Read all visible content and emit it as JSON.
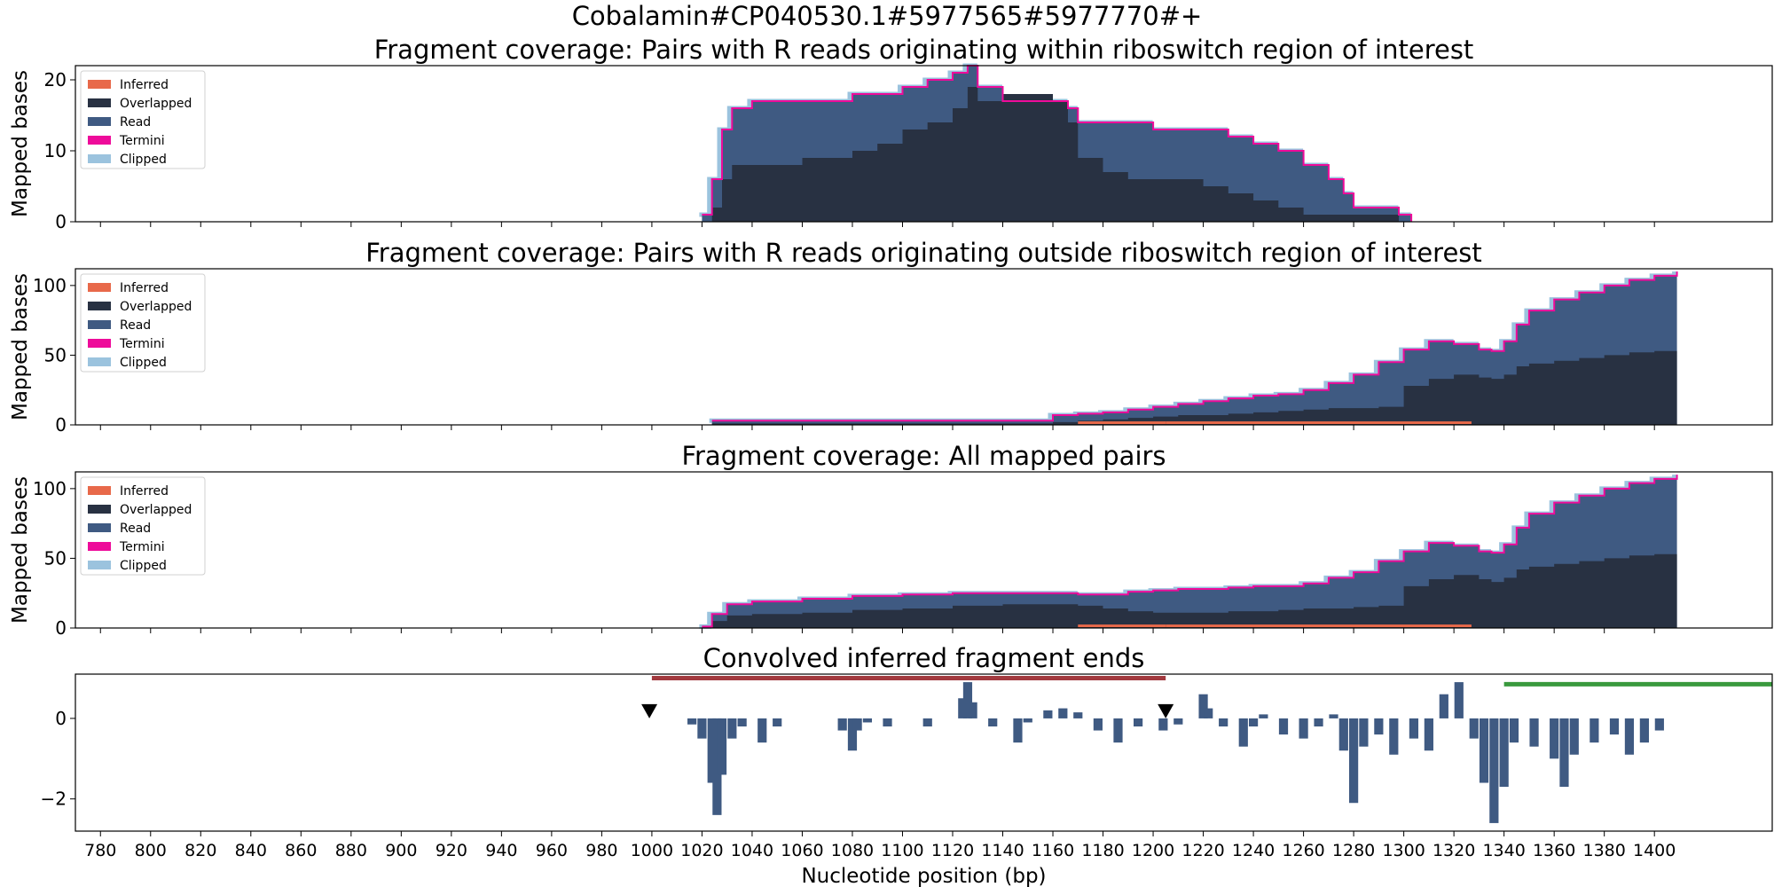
{
  "figure": {
    "suptitle": "Cobalamin#CP040530.1#5977565#5977770#+",
    "xlabel": "Nucleotide position (bp)",
    "colors": {
      "inferred": "#e8694a",
      "overlapped": "#283142",
      "read": "#3f5a82",
      "termini": "#ee0b9a",
      "clipped": "#9bc3de",
      "ends_bar": "#3f5a82",
      "red_line": "#a23a3f",
      "green_line": "#3a9a3e",
      "marker": "#000000"
    }
  },
  "chart_data": [
    {
      "type": "area",
      "title": "Fragment coverage: Pairs with R reads originating within riboswitch region of interest",
      "ylabel": "Mapped bases",
      "ylim": [
        0,
        22
      ],
      "yticks": [
        0,
        10,
        20
      ],
      "legend": [
        "Inferred",
        "Overlapped",
        "Read",
        "Termini",
        "Clipped"
      ],
      "legend_position": "upper-left",
      "series": [
        {
          "name": "Read",
          "x": [
            1020,
            1024,
            1028,
            1032,
            1040,
            1050,
            1060,
            1070,
            1080,
            1090,
            1100,
            1110,
            1120,
            1126,
            1130,
            1140,
            1150,
            1160,
            1166,
            1170,
            1180,
            1190,
            1200,
            1210,
            1220,
            1230,
            1240,
            1250,
            1260,
            1270,
            1276,
            1280,
            1290,
            1298,
            1303
          ],
          "values": [
            1,
            6,
            13,
            16,
            17,
            17,
            17,
            17,
            18,
            18,
            19,
            20,
            21,
            22,
            19,
            17,
            17,
            17,
            16,
            14,
            14,
            14,
            13,
            13,
            13,
            12,
            11,
            10,
            8,
            6,
            4,
            2,
            2,
            1,
            0
          ]
        },
        {
          "name": "Overlapped",
          "x": [
            1020,
            1024,
            1028,
            1032,
            1040,
            1050,
            1060,
            1070,
            1080,
            1090,
            1100,
            1110,
            1120,
            1126,
            1130,
            1140,
            1150,
            1160,
            1166,
            1170,
            1180,
            1190,
            1200,
            1210,
            1220,
            1230,
            1240,
            1250,
            1260,
            1270,
            1276,
            1280,
            1290,
            1298,
            1303
          ],
          "values": [
            0,
            2,
            6,
            8,
            8,
            8,
            9,
            9,
            10,
            11,
            13,
            14,
            16,
            19,
            17,
            18,
            18,
            17,
            14,
            9,
            7,
            6,
            6,
            6,
            5,
            4,
            3,
            2,
            1,
            1,
            1,
            1,
            1,
            0,
            0
          ]
        }
      ]
    },
    {
      "type": "area",
      "title": "Fragment coverage: Pairs with R reads originating outside riboswitch region of interest",
      "ylabel": "Mapped bases",
      "ylim": [
        0,
        112
      ],
      "yticks": [
        0,
        50,
        100
      ],
      "legend": [
        "Inferred",
        "Overlapped",
        "Read",
        "Termini",
        "Clipped"
      ],
      "legend_position": "upper-left",
      "series": [
        {
          "name": "Read",
          "x": [
            1024,
            1050,
            1080,
            1100,
            1140,
            1160,
            1170,
            1180,
            1190,
            1200,
            1210,
            1220,
            1230,
            1240,
            1250,
            1260,
            1270,
            1280,
            1290,
            1300,
            1310,
            1320,
            1330,
            1335,
            1340,
            1345,
            1350,
            1360,
            1370,
            1380,
            1390,
            1400,
            1409
          ],
          "values": [
            3,
            3,
            3,
            3,
            3,
            7,
            8,
            9,
            11,
            13,
            15,
            17,
            19,
            21,
            22,
            25,
            30,
            36,
            45,
            54,
            60,
            58,
            54,
            53,
            60,
            72,
            82,
            90,
            95,
            100,
            104,
            107,
            110
          ]
        },
        {
          "name": "Overlapped",
          "x": [
            1024,
            1050,
            1080,
            1100,
            1140,
            1160,
            1170,
            1180,
            1190,
            1200,
            1210,
            1220,
            1230,
            1240,
            1250,
            1260,
            1270,
            1280,
            1290,
            1300,
            1310,
            1320,
            1330,
            1335,
            1340,
            1345,
            1350,
            1360,
            1370,
            1380,
            1390,
            1400,
            1409
          ],
          "values": [
            1,
            1,
            1,
            1,
            1,
            2,
            3,
            4,
            5,
            6,
            7,
            7,
            8,
            9,
            10,
            11,
            12,
            12,
            13,
            28,
            33,
            36,
            34,
            33,
            36,
            42,
            44,
            46,
            48,
            50,
            52,
            53,
            52
          ]
        }
      ]
    },
    {
      "type": "area",
      "title": "Fragment coverage: All mapped pairs",
      "ylabel": "Mapped bases",
      "ylim": [
        0,
        112
      ],
      "yticks": [
        0,
        50,
        100
      ],
      "legend": [
        "Inferred",
        "Overlapped",
        "Read",
        "Termini",
        "Clipped"
      ],
      "legend_position": "upper-left",
      "series": [
        {
          "name": "Read",
          "x": [
            1020,
            1024,
            1030,
            1040,
            1060,
            1080,
            1100,
            1120,
            1140,
            1160,
            1170,
            1180,
            1190,
            1200,
            1210,
            1220,
            1230,
            1240,
            1250,
            1260,
            1270,
            1280,
            1290,
            1300,
            1310,
            1320,
            1330,
            1335,
            1340,
            1345,
            1350,
            1360,
            1370,
            1380,
            1390,
            1400,
            1409
          ],
          "values": [
            1,
            10,
            17,
            19,
            21,
            23,
            24,
            25,
            25,
            25,
            24,
            24,
            26,
            27,
            28,
            28,
            29,
            30,
            30,
            32,
            36,
            40,
            48,
            55,
            61,
            59,
            55,
            54,
            60,
            72,
            82,
            90,
            95,
            100,
            104,
            107,
            110
          ]
        },
        {
          "name": "Overlapped",
          "x": [
            1020,
            1024,
            1030,
            1040,
            1060,
            1080,
            1100,
            1120,
            1140,
            1160,
            1170,
            1180,
            1190,
            1200,
            1210,
            1220,
            1230,
            1240,
            1250,
            1260,
            1270,
            1280,
            1290,
            1300,
            1310,
            1320,
            1330,
            1335,
            1340,
            1345,
            1350,
            1360,
            1370,
            1380,
            1390,
            1400,
            1409
          ],
          "values": [
            0,
            5,
            9,
            10,
            11,
            13,
            14,
            16,
            17,
            17,
            16,
            14,
            12,
            11,
            11,
            11,
            12,
            12,
            13,
            14,
            14,
            15,
            16,
            30,
            35,
            38,
            35,
            33,
            36,
            42,
            44,
            46,
            48,
            50,
            52,
            53,
            52
          ]
        }
      ]
    },
    {
      "type": "bar",
      "title": "Convolved inferred fragment ends",
      "xlabel": "Nucleotide position (bp)",
      "ylim": [
        -2.8,
        1.1
      ],
      "yticks": [
        0,
        -2
      ],
      "ytick_labels": [
        "0",
        "−2"
      ],
      "xlim": [
        770,
        1447
      ],
      "xticks": [
        780,
        800,
        820,
        840,
        860,
        880,
        900,
        920,
        940,
        960,
        980,
        1000,
        1020,
        1040,
        1060,
        1080,
        1100,
        1120,
        1140,
        1160,
        1180,
        1200,
        1220,
        1240,
        1260,
        1280,
        1300,
        1320,
        1340,
        1360,
        1380,
        1400
      ],
      "x": [
        1016,
        1020,
        1024,
        1026,
        1028,
        1032,
        1036,
        1044,
        1050,
        1076,
        1080,
        1082,
        1086,
        1094,
        1110,
        1124,
        1126,
        1128,
        1136,
        1146,
        1150,
        1158,
        1164,
        1170,
        1178,
        1186,
        1194,
        1204,
        1210,
        1220,
        1222,
        1228,
        1236,
        1240,
        1244,
        1252,
        1260,
        1266,
        1272,
        1276,
        1280,
        1284,
        1290,
        1296,
        1304,
        1310,
        1316,
        1322,
        1328,
        1332,
        1336,
        1340,
        1344,
        1352,
        1360,
        1364,
        1368,
        1376,
        1384,
        1390,
        1396,
        1402
      ],
      "values": [
        -0.15,
        -0.5,
        -1.6,
        -2.4,
        -1.4,
        -0.5,
        -0.2,
        -0.6,
        -0.2,
        -0.3,
        -0.8,
        -0.3,
        -0.1,
        -0.2,
        -0.2,
        0.5,
        0.9,
        0.4,
        -0.2,
        -0.6,
        -0.1,
        0.2,
        0.25,
        0.15,
        -0.3,
        -0.6,
        -0.2,
        -0.3,
        -0.15,
        0.6,
        0.25,
        -0.2,
        -0.7,
        -0.2,
        0.1,
        -0.4,
        -0.5,
        -0.2,
        0.1,
        -0.8,
        -2.1,
        -0.7,
        -0.4,
        -0.9,
        -0.5,
        -0.8,
        0.6,
        0.9,
        -0.5,
        -1.6,
        -2.6,
        -1.7,
        -0.6,
        -0.7,
        -1.0,
        -1.7,
        -0.9,
        -0.6,
        -0.4,
        -0.9,
        -0.6,
        -0.3
      ],
      "annotations": [
        {
          "type": "range-line",
          "x_start": 1000,
          "x_end": 1205,
          "y": 1.0,
          "color": "red_line"
        },
        {
          "type": "range-line",
          "x_start": 1340,
          "x_end": 1447,
          "y": 0.85,
          "color": "green_line"
        },
        {
          "type": "marker",
          "x": 999,
          "y": 0.0,
          "symbol": "triangle-down"
        },
        {
          "type": "marker",
          "x": 1205,
          "y": 0.0,
          "symbol": "triangle-down"
        }
      ]
    }
  ]
}
